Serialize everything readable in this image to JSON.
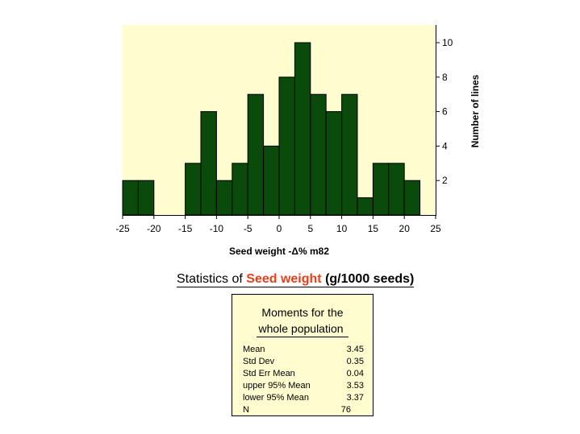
{
  "chart_data": {
    "type": "bar",
    "subtype": "histogram",
    "x_bin_edges": [
      -25,
      -22.5,
      -20,
      -17.5,
      -15,
      -12.5,
      -10,
      -7.5,
      -5,
      -2.5,
      0,
      2.5,
      5,
      7.5,
      10,
      12.5,
      15,
      17.5,
      20,
      22.5
    ],
    "values": [
      2,
      2,
      0,
      0,
      3,
      6,
      2,
      3,
      7,
      4,
      8,
      10,
      7,
      6,
      7,
      1,
      3,
      3,
      2
    ],
    "xlim": [
      -25,
      25
    ],
    "ylim": [
      0,
      11
    ],
    "x_ticks": [
      -25,
      -20,
      -15,
      -10,
      -5,
      0,
      5,
      10,
      15,
      20,
      25
    ],
    "x_tick_labels": [
      "-25",
      "-20",
      "-15",
      "-10",
      "-5",
      "0",
      "5",
      "10",
      "15",
      "20",
      "25"
    ],
    "y_ticks": [
      2,
      4,
      6,
      8,
      10
    ],
    "y_tick_labels": [
      "2",
      "4",
      "6",
      "8",
      "10"
    ],
    "xlabel": "Seed weight -Δ% m82",
    "ylabel": "Number of lines",
    "y_axis_side": "right",
    "bar_color": "#0a4a0a",
    "plot_background": "#fffdd0",
    "grid": false
  },
  "stats": {
    "title_prefix": "Statistics of",
    "title_highlight": "Seed weight",
    "title_units": "(g/1000 seeds)",
    "highlight_color": "#e8401c",
    "box": {
      "heading_line1": "Moments for the",
      "heading_line2": "whole population",
      "rows": [
        {
          "label": "Mean",
          "value": "3.45"
        },
        {
          "label": "Std Dev",
          "value": "0.35"
        },
        {
          "label": "Std Err Mean",
          "value": "0.04"
        },
        {
          "label": "upper 95% Mean",
          "value": "3.53"
        },
        {
          "label": "lower 95% Mean",
          "value": "3.37"
        },
        {
          "label": "N",
          "value": "76"
        }
      ]
    }
  }
}
